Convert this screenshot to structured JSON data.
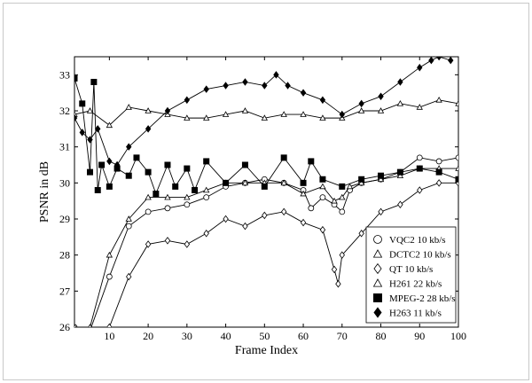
{
  "chart_data": {
    "type": "line",
    "title": "",
    "xlabel": "Frame Index",
    "ylabel": "PSNR in dB",
    "xlim": [
      1,
      100
    ],
    "ylim": [
      26,
      33.5
    ],
    "xticks": [
      10,
      20,
      30,
      40,
      50,
      60,
      70,
      80,
      90,
      100
    ],
    "yticks": [
      26,
      27,
      28,
      29,
      30,
      31,
      32,
      33
    ],
    "grid": false,
    "legend_position": "bottom-right",
    "series": [
      {
        "name": "VQC2 10 kb/s",
        "marker": "circle",
        "x": [
          1,
          5,
          10,
          15,
          20,
          25,
          30,
          35,
          40,
          45,
          50,
          55,
          60,
          62,
          65,
          68,
          70,
          72,
          75,
          80,
          85,
          90,
          95,
          100
        ],
        "y": [
          26,
          25.9,
          27.4,
          28.8,
          29.2,
          29.3,
          29.4,
          29.6,
          29.9,
          30.0,
          30.1,
          30.0,
          29.8,
          29.3,
          29.6,
          29.4,
          29.2,
          29.8,
          30.0,
          30.1,
          30.3,
          30.7,
          30.6,
          30.7
        ]
      },
      {
        "name": "DCTC2 10 kb/s",
        "marker": "triangle",
        "x": [
          1,
          5,
          10,
          15,
          20,
          25,
          30,
          35,
          40,
          45,
          50,
          55,
          60,
          65,
          68,
          70,
          72,
          75,
          80,
          85,
          90,
          95,
          100
        ],
        "y": [
          26,
          26,
          28.0,
          29.0,
          29.6,
          29.6,
          29.6,
          29.8,
          30.0,
          30.0,
          30.0,
          30.0,
          29.7,
          29.9,
          29.5,
          29.6,
          29.9,
          30.0,
          30.1,
          30.2,
          30.4,
          30.4,
          30.4
        ]
      },
      {
        "name": "QT 10 kb/s",
        "marker": "diamond",
        "x": [
          1,
          5,
          10,
          15,
          20,
          25,
          30,
          35,
          40,
          45,
          50,
          55,
          60,
          65,
          68,
          69,
          70,
          75,
          80,
          85,
          90,
          95,
          100
        ],
        "y": [
          25.5,
          25.5,
          26.0,
          27.4,
          28.3,
          28.4,
          28.3,
          28.6,
          29.0,
          28.8,
          29.1,
          29.2,
          28.9,
          28.7,
          27.6,
          27.2,
          28.0,
          28.6,
          29.2,
          29.4,
          29.8,
          30.0,
          30.0
        ]
      },
      {
        "name": "H261 22 kb/s",
        "marker": "triangle",
        "x": [
          1,
          5,
          10,
          15,
          20,
          25,
          30,
          35,
          40,
          45,
          50,
          55,
          60,
          65,
          70,
          75,
          80,
          85,
          90,
          95,
          100
        ],
        "y": [
          31.9,
          32.0,
          31.6,
          32.1,
          32.0,
          31.9,
          31.8,
          31.8,
          31.9,
          32.0,
          31.8,
          31.9,
          31.9,
          31.8,
          31.8,
          32.0,
          32.0,
          32.2,
          32.1,
          32.3,
          32.2
        ]
      },
      {
        "name": "MPEG-2 28 kb/s",
        "marker": "square",
        "x": [
          1,
          3,
          5,
          6,
          7,
          8,
          10,
          12,
          15,
          17,
          20,
          22,
          25,
          27,
          30,
          32,
          35,
          40,
          45,
          50,
          55,
          60,
          62,
          65,
          70,
          75,
          80,
          85,
          90,
          95,
          100
        ],
        "y": [
          32.9,
          32.2,
          30.3,
          32.8,
          29.8,
          30.5,
          29.9,
          30.4,
          30.2,
          30.7,
          30.3,
          29.7,
          30.5,
          29.9,
          30.4,
          29.8,
          30.6,
          30.0,
          30.5,
          29.9,
          30.7,
          30.0,
          30.6,
          30.1,
          29.9,
          30.1,
          30.2,
          30.3,
          30.4,
          30.3,
          30.1
        ]
      },
      {
        "name": "H263 11 kb/s",
        "marker": "diamond-filled",
        "x": [
          1,
          3,
          5,
          7,
          10,
          12,
          15,
          20,
          25,
          30,
          35,
          40,
          45,
          50,
          53,
          56,
          60,
          65,
          70,
          75,
          80,
          85,
          90,
          93,
          95,
          98
        ],
        "y": [
          31.8,
          31.4,
          31.2,
          31.5,
          30.6,
          30.5,
          31.0,
          31.5,
          32.0,
          32.3,
          32.6,
          32.7,
          32.8,
          32.7,
          33.0,
          32.7,
          32.5,
          32.3,
          31.9,
          32.2,
          32.4,
          32.8,
          33.2,
          33.4,
          33.5,
          33.4
        ]
      }
    ]
  }
}
